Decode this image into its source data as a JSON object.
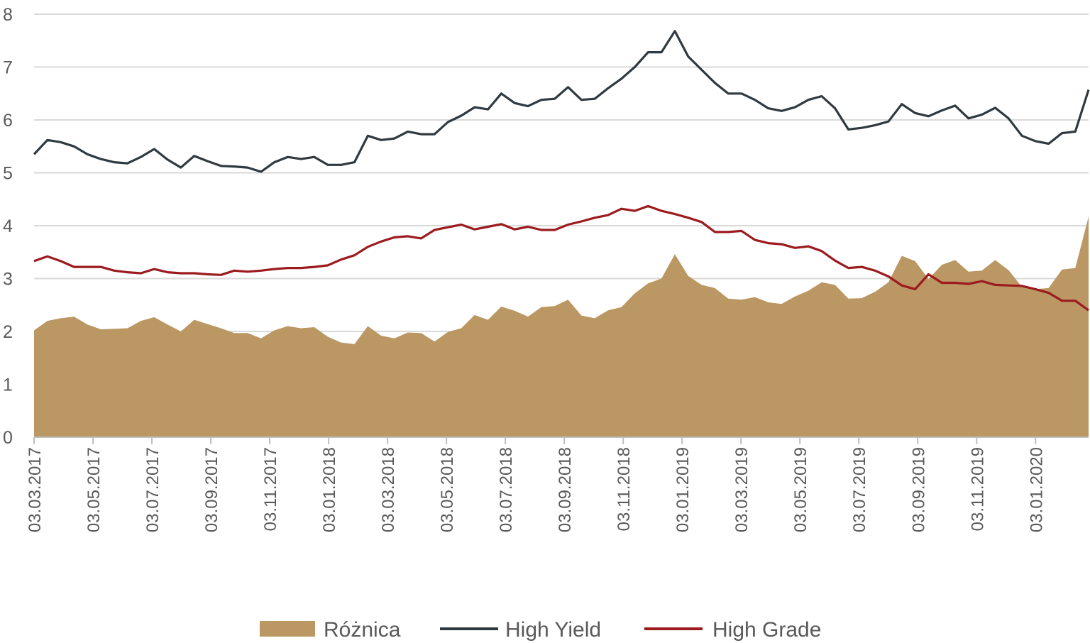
{
  "chart_data": {
    "type": "area+line",
    "title": "",
    "xlabel": "",
    "ylabel": "",
    "ylim": [
      0,
      8
    ],
    "yticks": [
      "0",
      "1",
      "2",
      "3",
      "4",
      "5",
      "6",
      "7",
      "8"
    ],
    "grid": true,
    "x_units": "months since 03.03.2017",
    "x_range": [
      0,
      35.8
    ],
    "x_step": 0.4532,
    "xticks": [
      {
        "x": 0,
        "label": "03.03.2017"
      },
      {
        "x": 2,
        "label": "03.05.2017"
      },
      {
        "x": 4,
        "label": "03.07.2017"
      },
      {
        "x": 6,
        "label": "03.09.2017"
      },
      {
        "x": 8,
        "label": "03.11.2017"
      },
      {
        "x": 10,
        "label": "03.01.2018"
      },
      {
        "x": 12,
        "label": "03.03.2018"
      },
      {
        "x": 14,
        "label": "03.05.2018"
      },
      {
        "x": 16,
        "label": "03.07.2018"
      },
      {
        "x": 18,
        "label": "03.09.2018"
      },
      {
        "x": 20,
        "label": "03.11.2018"
      },
      {
        "x": 22,
        "label": "03.01.2019"
      },
      {
        "x": 24,
        "label": "03.03.2019"
      },
      {
        "x": 26,
        "label": "03.05.2019"
      },
      {
        "x": 28,
        "label": "03.07.2019"
      },
      {
        "x": 30,
        "label": "03.09.2019"
      },
      {
        "x": 32,
        "label": "03.11.2019"
      },
      {
        "x": 34,
        "label": "03.01.2020"
      }
    ],
    "legend_position": "bottom",
    "series": [
      {
        "name": "Różnica",
        "kind": "area",
        "color": "#bb9763",
        "values": [
          2.02,
          2.2,
          2.25,
          2.28,
          2.13,
          2.04,
          2.05,
          2.06,
          2.2,
          2.27,
          2.13,
          2.0,
          2.22,
          2.14,
          2.06,
          1.97,
          1.97,
          1.87,
          2.02,
          2.1,
          2.06,
          2.08,
          1.9,
          1.79,
          1.76,
          2.1,
          1.92,
          1.87,
          1.98,
          1.97,
          1.81,
          1.99,
          2.06,
          2.31,
          2.22,
          2.47,
          2.39,
          2.28,
          2.46,
          2.48,
          2.6,
          2.3,
          2.25,
          2.4,
          2.46,
          2.72,
          2.91,
          3.0,
          3.46,
          3.05,
          2.88,
          2.82,
          2.62,
          2.6,
          2.65,
          2.55,
          2.52,
          2.66,
          2.77,
          2.93,
          2.88,
          2.62,
          2.63,
          2.75,
          2.93,
          3.43,
          3.33,
          2.99,
          3.26,
          3.35,
          3.13,
          3.15,
          3.35,
          3.16,
          2.84,
          2.8,
          2.82,
          3.17,
          3.2,
          4.17
        ]
      },
      {
        "name": "High Yield",
        "kind": "line",
        "color": "#2e3a3f",
        "values": [
          5.35,
          5.62,
          5.58,
          5.5,
          5.35,
          5.26,
          5.2,
          5.18,
          5.3,
          5.45,
          5.25,
          5.1,
          5.32,
          5.22,
          5.13,
          5.12,
          5.1,
          5.02,
          5.2,
          5.3,
          5.26,
          5.3,
          5.15,
          5.15,
          5.2,
          5.7,
          5.62,
          5.65,
          5.78,
          5.73,
          5.73,
          5.96,
          6.08,
          6.24,
          6.2,
          6.5,
          6.32,
          6.26,
          6.38,
          6.4,
          6.62,
          6.38,
          6.4,
          6.6,
          6.78,
          7.0,
          7.28,
          7.28,
          7.68,
          7.2,
          6.95,
          6.7,
          6.5,
          6.5,
          6.38,
          6.22,
          6.17,
          6.24,
          6.38,
          6.45,
          6.22,
          5.82,
          5.85,
          5.9,
          5.97,
          6.3,
          6.13,
          6.07,
          6.18,
          6.27,
          6.03,
          6.1,
          6.23,
          6.03,
          5.7,
          5.6,
          5.55,
          5.75,
          5.78,
          6.57
        ]
      },
      {
        "name": "High Grade",
        "kind": "line",
        "color": "#9b1b1f",
        "values": [
          3.33,
          3.42,
          3.33,
          3.22,
          3.22,
          3.22,
          3.15,
          3.12,
          3.1,
          3.18,
          3.12,
          3.1,
          3.1,
          3.08,
          3.07,
          3.15,
          3.13,
          3.15,
          3.18,
          3.2,
          3.2,
          3.22,
          3.25,
          3.36,
          3.44,
          3.6,
          3.7,
          3.78,
          3.8,
          3.76,
          3.92,
          3.97,
          4.02,
          3.93,
          3.98,
          4.03,
          3.93,
          3.98,
          3.92,
          3.92,
          4.02,
          4.08,
          4.15,
          4.2,
          4.32,
          4.28,
          4.37,
          4.28,
          4.22,
          4.15,
          4.07,
          3.88,
          3.88,
          3.9,
          3.73,
          3.67,
          3.65,
          3.58,
          3.61,
          3.52,
          3.34,
          3.2,
          3.22,
          3.15,
          3.04,
          2.87,
          2.8,
          3.08,
          2.92,
          2.92,
          2.9,
          2.95,
          2.88,
          2.87,
          2.86,
          2.8,
          2.73,
          2.58,
          2.58,
          2.4
        ]
      }
    ]
  }
}
